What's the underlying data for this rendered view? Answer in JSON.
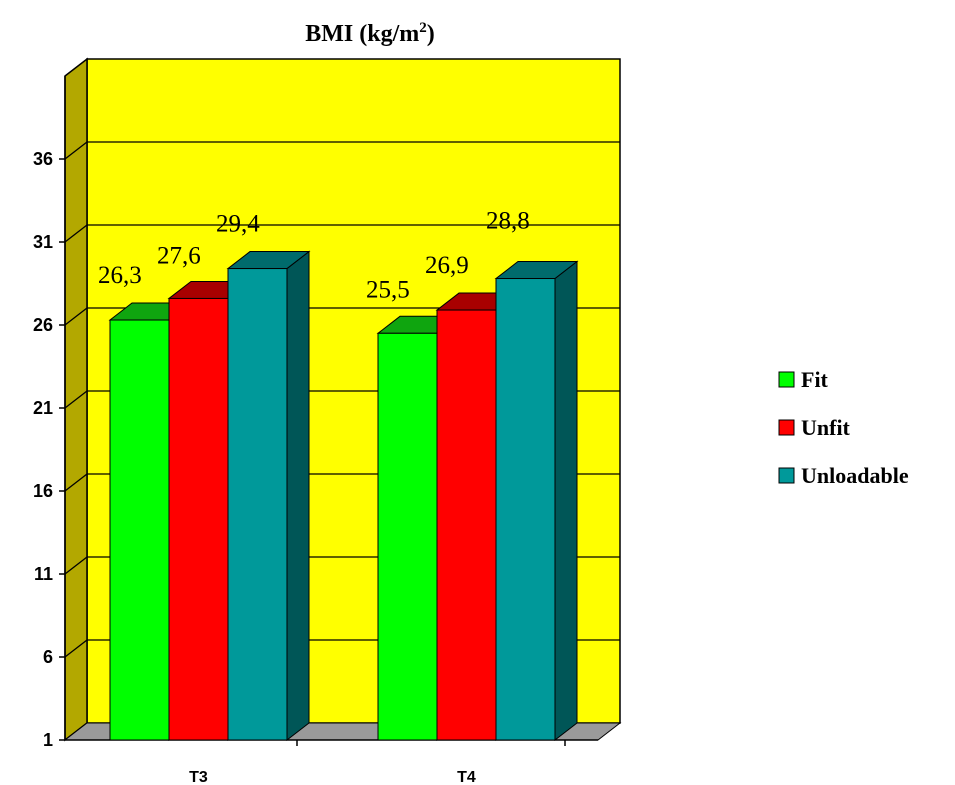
{
  "chart_data": {
    "type": "bar",
    "title": "BMI (kg/m",
    "title_superscript": "2",
    "title_suffix": ")",
    "categories": [
      "T3",
      "T4"
    ],
    "series": [
      {
        "name": "Fit",
        "values": [
          26.3,
          25.5
        ],
        "labels": [
          "26,3",
          "25,5"
        ],
        "color": "#00ff00",
        "top_color": "#0fa50f",
        "side_color": "#0a7a0a"
      },
      {
        "name": "Unfit",
        "values": [
          27.6,
          26.9
        ],
        "labels": [
          "27,6",
          "26,9"
        ],
        "color": "#ff0000",
        "top_color": "#a80000",
        "side_color": "#7a0000"
      },
      {
        "name": "Unloadable",
        "values": [
          29.4,
          28.8
        ],
        "labels": [
          "29,4",
          "28,8"
        ],
        "color": "#00999a",
        "top_color": "#006b6c",
        "side_color": "#005657"
      }
    ],
    "yticks": [
      1,
      6,
      11,
      16,
      21,
      26,
      31,
      36
    ],
    "ylim": [
      1,
      41
    ],
    "grid": true,
    "legend_position": "right",
    "plot_background": "#ffff00",
    "wall_side_color": "#b3a800",
    "floor_color": "#9a9a9a",
    "chart_style": "3d-clustered-column"
  }
}
